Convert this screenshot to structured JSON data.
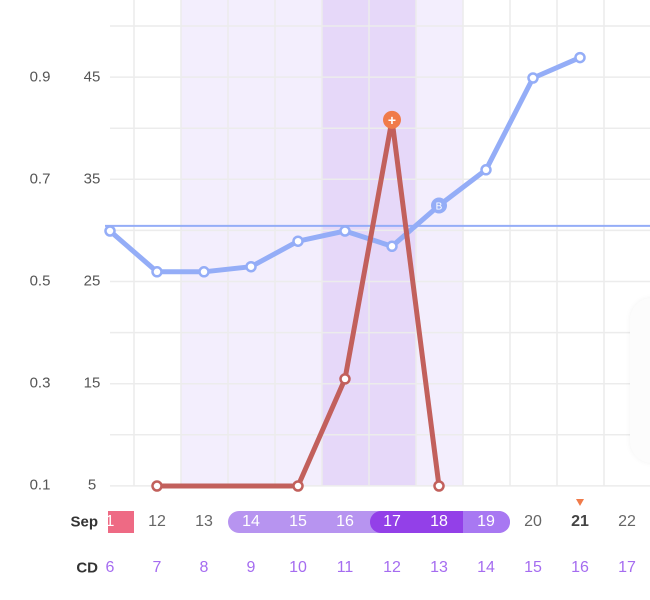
{
  "chart_data": {
    "type": "line",
    "left_axis": {
      "ticks": [
        "0.9",
        "0.7",
        "0.5",
        "0.3",
        "0.1"
      ],
      "ylim": [
        0.1,
        0.9
      ]
    },
    "right_axis": {
      "ticks": [
        "45",
        "35",
        "25",
        "15",
        "5"
      ],
      "ylim": [
        5,
        45
      ]
    },
    "grid": true,
    "x_cd": [
      6,
      7,
      8,
      9,
      10,
      11,
      12,
      13,
      14,
      15,
      16,
      17
    ],
    "series": [
      {
        "axis": "left",
        "color": "#94adf7",
        "points": [
          [
            6,
            0.6
          ],
          [
            7,
            0.52
          ],
          [
            8,
            0.52
          ],
          [
            9,
            0.53
          ],
          [
            10,
            0.58
          ],
          [
            11,
            0.6
          ],
          [
            12,
            0.57
          ],
          [
            13,
            0.65
          ],
          [
            14,
            0.72
          ],
          [
            15,
            0.9
          ],
          [
            16,
            0.94
          ]
        ],
        "markers": {
          "13": "B"
        }
      },
      {
        "axis": "right",
        "color": "#c2605c",
        "points": [
          [
            7,
            5
          ],
          [
            10,
            5
          ],
          [
            11,
            15.5
          ],
          [
            12,
            40.9
          ],
          [
            13,
            5
          ]
        ],
        "peak_marker": {
          "cd": 12,
          "symbol": "+",
          "color": "#f07b4a"
        }
      }
    ],
    "threshold_line": {
      "axis": "left",
      "value": 0.61,
      "color": "#94adf7"
    },
    "bands": [
      {
        "from_cd": 8,
        "to_cd": 13,
        "color": "#f3eefd"
      },
      {
        "from_cd": 11,
        "to_cd": 12,
        "color": "#e6d8f9"
      }
    ]
  },
  "date_row": {
    "label": "Sep",
    "days": [
      {
        "text": "1",
        "style": "period"
      },
      {
        "text": "12",
        "style": "normal"
      },
      {
        "text": "13",
        "style": "normal"
      },
      {
        "text": "14",
        "style": "fertile"
      },
      {
        "text": "15",
        "style": "fertile"
      },
      {
        "text": "16",
        "style": "fertile"
      },
      {
        "text": "17",
        "style": "peak"
      },
      {
        "text": "18",
        "style": "peak"
      },
      {
        "text": "19",
        "style": "fertile2"
      },
      {
        "text": "20",
        "style": "normal"
      },
      {
        "text": "21",
        "style": "today"
      },
      {
        "text": "22",
        "style": "normal"
      }
    ]
  },
  "cd_row": {
    "label": "CD",
    "values": [
      "6",
      "7",
      "8",
      "9",
      "10",
      "11",
      "12",
      "13",
      "14",
      "15",
      "16",
      "17"
    ]
  },
  "colors": {
    "period": "#ee6a84",
    "fertile": "#b794f0",
    "peak": "#9340e8",
    "fertile2": "#a878f2",
    "cd": "#a56cf0",
    "today_marker": "#f07b4a"
  }
}
